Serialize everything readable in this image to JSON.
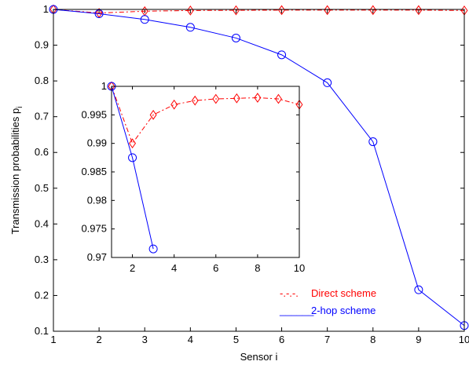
{
  "chart_data": [
    {
      "type": "line",
      "xlabel": "Sensor i",
      "ylabel": "Transmission probabilities p",
      "ylabel_subscript": "i",
      "xlim": [
        1,
        10
      ],
      "ylim": [
        0.1,
        1
      ],
      "xticks": [
        "1",
        "2",
        "3",
        "4",
        "5",
        "6",
        "7",
        "8",
        "9",
        "10"
      ],
      "yticks": [
        "0.1",
        "0.2",
        "0.3",
        "0.4",
        "0.5",
        "0.6",
        "0.7",
        "0.8",
        "0.9",
        "1"
      ],
      "grid": false,
      "legend_position": "bottom-right",
      "series": [
        {
          "name": "Direct scheme",
          "legend_style_text": "-.-.-.",
          "color": "#ff0000",
          "line_style": "dash-dot",
          "marker": "diamond",
          "x": [
            1,
            2,
            3,
            4,
            5,
            6,
            7,
            8,
            9,
            10
          ],
          "y": [
            1.0,
            0.99,
            0.995,
            0.997,
            0.9975,
            0.998,
            0.998,
            0.998,
            0.998,
            0.997
          ]
        },
        {
          "name": "2-hop scheme",
          "legend_style_text": "______",
          "color": "#0000ff",
          "line_style": "solid",
          "marker": "circle",
          "x": [
            1,
            2,
            3,
            4,
            5,
            6,
            7,
            8,
            9,
            10
          ],
          "y": [
            1.0,
            0.988,
            0.972,
            0.95,
            0.92,
            0.873,
            0.795,
            0.63,
            0.216,
            0.116
          ]
        }
      ]
    },
    {
      "type": "line",
      "inset": true,
      "xlim": [
        1,
        10
      ],
      "ylim": [
        0.97,
        1
      ],
      "xticks": [
        "2",
        "4",
        "6",
        "8",
        "10"
      ],
      "xtick_values": [
        2,
        4,
        6,
        8,
        10
      ],
      "yticks": [
        "0.97",
        "0.975",
        "0.98",
        "0.985",
        "0.99",
        "0.995",
        "1"
      ],
      "ytick_values": [
        0.97,
        0.975,
        0.98,
        0.985,
        0.99,
        0.995,
        1
      ],
      "grid": false,
      "series": [
        {
          "name": "Direct scheme",
          "color": "#ff0000",
          "line_style": "dash-dot",
          "marker": "diamond",
          "x": [
            1,
            2,
            3,
            4,
            5,
            6,
            7,
            8,
            9,
            10
          ],
          "y": [
            1.0,
            0.99,
            0.995,
            0.9968,
            0.9975,
            0.9978,
            0.9979,
            0.998,
            0.9978,
            0.9968
          ]
        },
        {
          "name": "2-hop scheme",
          "color": "#0000ff",
          "line_style": "solid",
          "marker": "circle",
          "x": [
            1,
            2,
            3
          ],
          "y": [
            1.0,
            0.9875,
            0.9715
          ]
        }
      ]
    }
  ]
}
